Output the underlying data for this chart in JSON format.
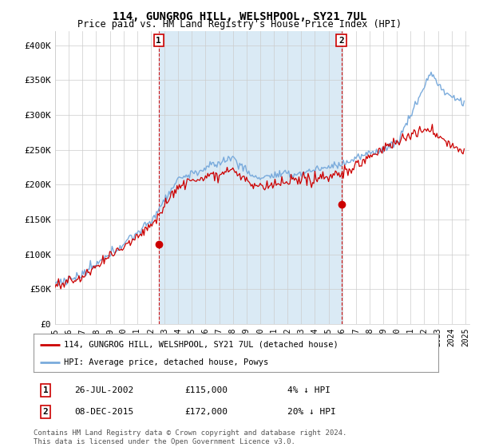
{
  "title": "114, GUNGROG HILL, WELSHPOOL, SY21 7UL",
  "subtitle": "Price paid vs. HM Land Registry's House Price Index (HPI)",
  "ylim": [
    0,
    420000
  ],
  "yticks": [
    0,
    50000,
    100000,
    150000,
    200000,
    250000,
    300000,
    350000,
    400000
  ],
  "ytick_labels": [
    "£0",
    "£50K",
    "£100K",
    "£150K",
    "£200K",
    "£250K",
    "£300K",
    "£350K",
    "£400K"
  ],
  "x_start_year": 1995,
  "x_end_year": 2025,
  "hpi_color": "#7aabdc",
  "price_color": "#cc0000",
  "fill_color": "#daeaf5",
  "sale1_date": 2002.57,
  "sale1_price": 115000,
  "sale2_date": 2015.93,
  "sale2_price": 172000,
  "legend_line1": "114, GUNGROG HILL, WELSHPOOL, SY21 7UL (detached house)",
  "legend_line2": "HPI: Average price, detached house, Powys",
  "table_row1_num": "1",
  "table_row1_date": "26-JUL-2002",
  "table_row1_price": "£115,000",
  "table_row1_hpi": "4% ↓ HPI",
  "table_row2_num": "2",
  "table_row2_date": "08-DEC-2015",
  "table_row2_price": "£172,000",
  "table_row2_hpi": "20% ↓ HPI",
  "footer": "Contains HM Land Registry data © Crown copyright and database right 2024.\nThis data is licensed under the Open Government Licence v3.0.",
  "background_color": "#ffffff",
  "grid_color": "#cccccc"
}
